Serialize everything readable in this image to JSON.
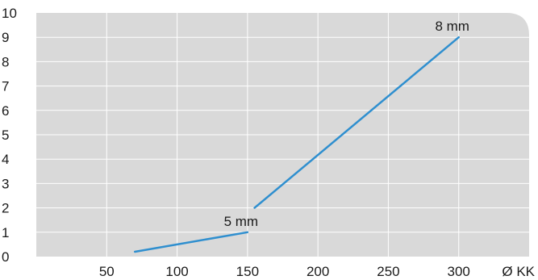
{
  "chart_data": {
    "type": "line",
    "xlabel": "Ø KK",
    "xlim": [
      0,
      350
    ],
    "ylim": [
      0,
      10
    ],
    "x_ticks": [
      50,
      100,
      150,
      200,
      250,
      300
    ],
    "y_ticks": [
      0,
      1,
      2,
      3,
      4,
      5,
      6,
      7,
      8,
      9,
      10
    ],
    "grid": true,
    "colors": {
      "plot_bg": "#d9d9d9",
      "grid": "#ffffff",
      "line": "#2f8fcf"
    },
    "series": [
      {
        "points": [
          [
            70,
            0.2
          ],
          [
            150,
            1.0
          ]
        ]
      },
      {
        "points": [
          [
            155,
            2.0
          ],
          [
            300,
            9.0
          ]
        ]
      }
    ],
    "annotations": [
      {
        "text": "5 mm",
        "x": 150,
        "y": 1.0
      },
      {
        "text": "8 mm",
        "x": 300,
        "y": 9.0
      }
    ]
  }
}
